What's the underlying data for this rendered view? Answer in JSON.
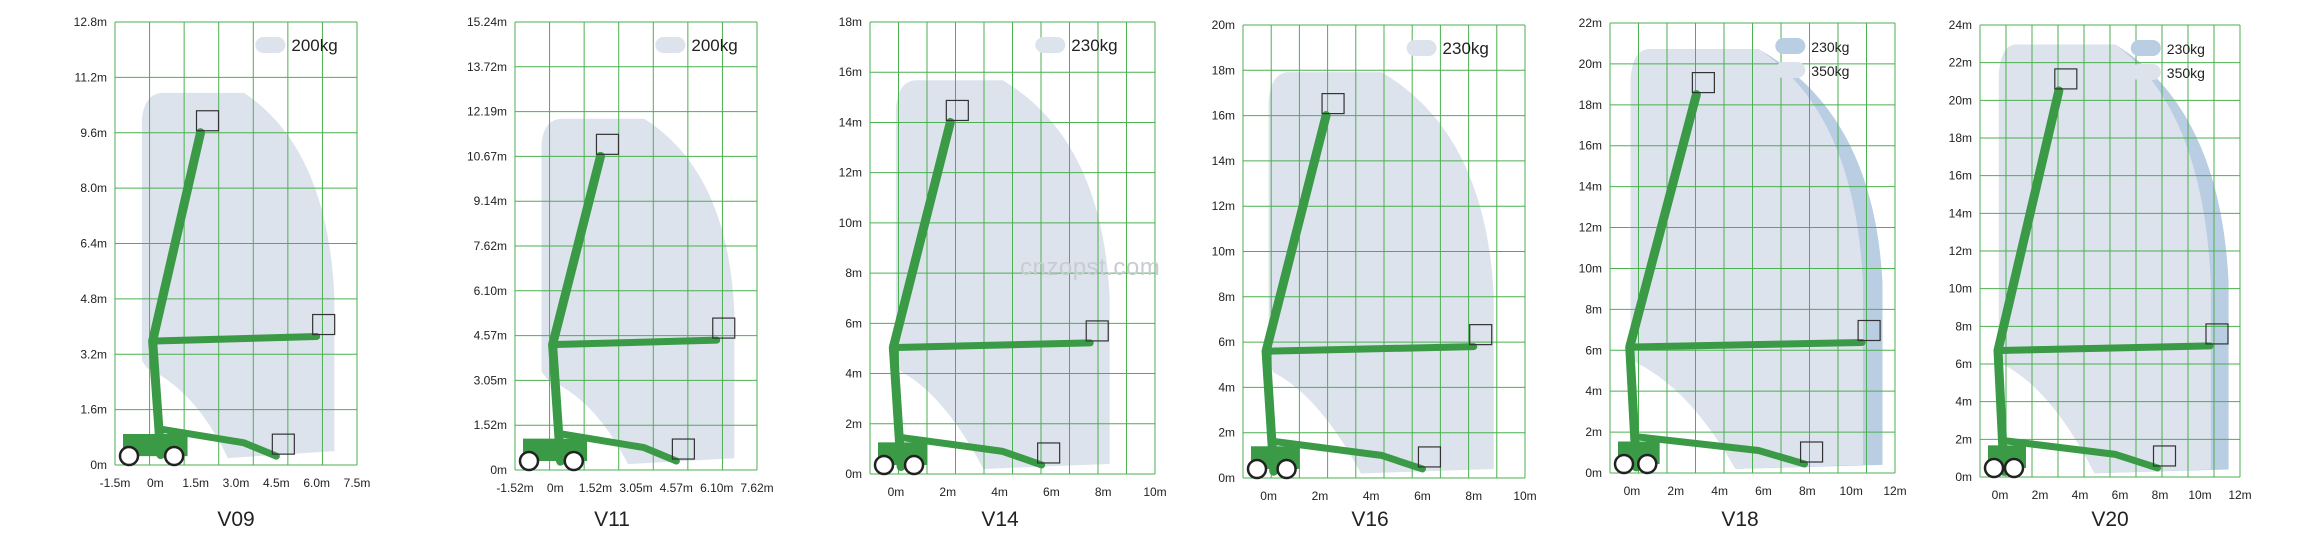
{
  "watermark": "cnzopst.com",
  "colors": {
    "grid": "#4caf50",
    "arm": "#3a9a46",
    "arm_dark": "#2f7f39",
    "envelope_light": "#dde3ed",
    "envelope_dark": "#b9cde3",
    "text": "#222222",
    "base_dark": "#555555"
  },
  "panels": [
    {
      "model": "V09",
      "y_ticks": [
        "0m",
        "1.6m",
        "3.2m",
        "4.8m",
        "6.4m",
        "8.0m",
        "9.6m",
        "11.2m",
        "12.8m"
      ],
      "x_ticks": [
        "-1.5m",
        "0m",
        "1.5m",
        "3.0m",
        "4.5m",
        "6.0m",
        "7.5m"
      ],
      "x_values": [
        -1.5,
        0,
        1.5,
        3,
        4.5,
        6,
        7.5
      ],
      "y_max": 12.8,
      "legend": [
        {
          "label": "200kg",
          "tone": "light"
        }
      ],
      "max_height": 9.6,
      "max_outreach": 6.0
    },
    {
      "model": "V11",
      "y_ticks": [
        "0m",
        "1.52m",
        "3.05m",
        "4.57m",
        "6.10m",
        "7.62m",
        "9.14m",
        "10.67m",
        "12.19m",
        "13.72m",
        "15.24m"
      ],
      "x_ticks": [
        "-1.52m",
        "0m",
        "1.52m",
        "3.05m",
        "4.57m",
        "6.10m",
        "7.62m"
      ],
      "x_values": [
        -1.52,
        0,
        1.52,
        3.05,
        4.57,
        6.1,
        7.62
      ],
      "y_max": 15.24,
      "legend": [
        {
          "label": "200kg",
          "tone": "light"
        }
      ],
      "max_height": 10.67,
      "max_outreach": 6.1
    },
    {
      "model": "V14",
      "y_ticks": [
        "0m",
        "2m",
        "4m",
        "6m",
        "8m",
        "10m",
        "12m",
        "14m",
        "16m",
        "18m"
      ],
      "x_ticks": [
        "0m",
        "2m",
        "4m",
        "6m",
        "8m",
        "10m"
      ],
      "x_values": [
        0,
        2,
        4,
        6,
        8,
        10
      ],
      "y_max": 18,
      "legend": [
        {
          "label": "230kg",
          "tone": "light"
        }
      ],
      "max_height": 14,
      "max_outreach": 7.5
    },
    {
      "model": "V16",
      "y_ticks": [
        "0m",
        "2m",
        "4m",
        "6m",
        "8m",
        "10m",
        "12m",
        "14m",
        "16m",
        "18m",
        "20m"
      ],
      "x_ticks": [
        "0m",
        "2m",
        "4m",
        "6m",
        "8m",
        "10m"
      ],
      "x_values": [
        0,
        2,
        4,
        6,
        8,
        10
      ],
      "y_max": 20,
      "legend": [
        {
          "label": "230kg",
          "tone": "light"
        }
      ],
      "max_height": 16,
      "max_outreach": 8
    },
    {
      "model": "V18",
      "y_ticks": [
        "0m",
        "2m",
        "4m",
        "6m",
        "8m",
        "10m",
        "12m",
        "14m",
        "16m",
        "18m",
        "20m",
        "22m"
      ],
      "x_ticks": [
        "0m",
        "2m",
        "4m",
        "6m",
        "8m",
        "10m",
        "12m"
      ],
      "x_values": [
        0,
        2,
        4,
        6,
        8,
        10,
        12
      ],
      "y_max": 22,
      "legend": [
        {
          "label": "230kg",
          "tone": "dark"
        },
        {
          "label": "350kg",
          "tone": "light"
        }
      ],
      "max_height": 18.5,
      "max_outreach": 10.5
    },
    {
      "model": "V20",
      "y_ticks": [
        "0m",
        "2m",
        "4m",
        "6m",
        "8m",
        "10m",
        "12m",
        "14m",
        "16m",
        "18m",
        "20m",
        "22m",
        "24m"
      ],
      "x_ticks": [
        "0m",
        "2m",
        "4m",
        "6m",
        "8m",
        "10m",
        "12m"
      ],
      "x_values": [
        0,
        2,
        4,
        6,
        8,
        10,
        12
      ],
      "y_max": 24,
      "legend": [
        {
          "label": "230kg",
          "tone": "dark"
        },
        {
          "label": "350kg",
          "tone": "light"
        }
      ],
      "max_height": 20.5,
      "max_outreach": 10.5
    }
  ]
}
